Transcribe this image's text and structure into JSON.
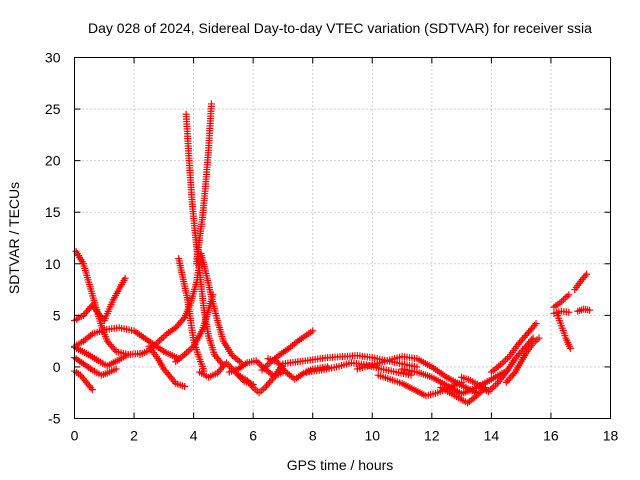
{
  "chart_data": {
    "type": "scatter",
    "title": "Day 028 of 2024, Sidereal Day-to-day VTEC variation (SDTVAR) for receiver ssia",
    "xlabel": "GPS time / hours",
    "ylabel": "SDTVAR / TECUs",
    "xlim": [
      0,
      18
    ],
    "ylim": [
      -5,
      30
    ],
    "x_ticks": [
      0,
      2,
      4,
      6,
      8,
      10,
      12,
      14,
      16,
      18
    ],
    "y_ticks": [
      -5,
      0,
      5,
      10,
      15,
      20,
      25,
      30
    ],
    "x_tick_labels": [
      "0",
      "2",
      "4",
      "6",
      "8",
      "10",
      "12",
      "14",
      "16",
      "18"
    ],
    "y_tick_labels": [
      "-5",
      "0",
      "5",
      "10",
      "15",
      "20",
      "25",
      "30"
    ],
    "grid": true,
    "marker": "+",
    "color": "#ff0000",
    "series": [
      {
        "name": "trace-1",
        "points": [
          [
            0,
            4.5
          ],
          [
            0.3,
            5
          ],
          [
            0.6,
            6
          ],
          [
            0.8,
            5.2
          ],
          [
            1.0,
            4.5
          ],
          [
            1.3,
            6.5
          ],
          [
            1.7,
            8.6
          ]
        ]
      },
      {
        "name": "trace-2",
        "points": [
          [
            0.05,
            11.2
          ],
          [
            0.3,
            10
          ],
          [
            0.5,
            8
          ],
          [
            0.7,
            6
          ],
          [
            0.9,
            4
          ],
          [
            1.1,
            2.5
          ],
          [
            1.4,
            1.5
          ],
          [
            1.8,
            1.2
          ]
        ]
      },
      {
        "name": "trace-3",
        "points": [
          [
            0,
            2
          ],
          [
            0.3,
            2.5
          ],
          [
            0.6,
            3.2
          ],
          [
            1.0,
            3.6
          ],
          [
            1.5,
            3.8
          ],
          [
            2.0,
            3.5
          ],
          [
            2.5,
            2.5
          ],
          [
            3.0,
            1.5
          ],
          [
            3.5,
            0.8
          ]
        ]
      },
      {
        "name": "trace-4",
        "points": [
          [
            0,
            1.9
          ],
          [
            0.4,
            1.3
          ],
          [
            0.8,
            0.6
          ],
          [
            1.1,
            0.1
          ],
          [
            1.5,
            0.7
          ],
          [
            1.8,
            1.2
          ],
          [
            2.2,
            1.3
          ]
        ]
      },
      {
        "name": "trace-5",
        "points": [
          [
            0,
            0.9
          ],
          [
            0.3,
            0.3
          ],
          [
            0.6,
            -0.3
          ],
          [
            0.9,
            -0.8
          ],
          [
            1.1,
            -0.6
          ],
          [
            1.4,
            -0.2
          ]
        ]
      },
      {
        "name": "trace-6",
        "points": [
          [
            0,
            -0.4
          ],
          [
            0.2,
            -0.8
          ],
          [
            0.4,
            -1.5
          ],
          [
            0.6,
            -2.2
          ]
        ]
      },
      {
        "name": "trace-7",
        "points": [
          [
            2.2,
            1.2
          ],
          [
            2.5,
            1.6
          ],
          [
            2.8,
            2.4
          ],
          [
            3.1,
            3.2
          ],
          [
            3.4,
            3.8
          ],
          [
            3.7,
            4.8
          ],
          [
            3.9,
            6.2
          ],
          [
            4.1,
            8.2
          ],
          [
            4.25,
            11
          ],
          [
            4.4,
            9.3
          ],
          [
            4.6,
            6.8
          ],
          [
            4.8,
            4.5
          ],
          [
            5.0,
            2.5
          ],
          [
            5.3,
            1.1
          ],
          [
            5.6,
            0.4
          ]
        ]
      },
      {
        "name": "trace-8",
        "points": [
          [
            2.5,
            2.0
          ],
          [
            2.8,
            0.8
          ],
          [
            3.0,
            -0.2
          ],
          [
            3.2,
            -0.9
          ],
          [
            3.4,
            -1.6
          ],
          [
            3.7,
            -1.9
          ]
        ]
      },
      {
        "name": "trace-9",
        "points": [
          [
            3.5,
            10.5
          ],
          [
            3.65,
            8.5
          ],
          [
            3.8,
            6.5
          ],
          [
            3.9,
            4.5
          ],
          [
            4.0,
            2.6
          ],
          [
            4.15,
            1.2
          ],
          [
            4.35,
            -0.4
          ]
        ]
      },
      {
        "name": "trace-10",
        "points": [
          [
            3.75,
            24.5
          ],
          [
            3.85,
            20
          ],
          [
            3.95,
            16
          ],
          [
            4.05,
            13
          ],
          [
            4.15,
            10.5
          ],
          [
            4.25,
            8
          ],
          [
            4.35,
            5.5
          ],
          [
            4.5,
            3
          ],
          [
            4.7,
            1.2
          ],
          [
            4.95,
            0.3
          ]
        ]
      },
      {
        "name": "trace-11",
        "points": [
          [
            4.6,
            25.5
          ],
          [
            4.5,
            21
          ],
          [
            4.4,
            17.5
          ],
          [
            4.3,
            14.5
          ],
          [
            4.2,
            12.5
          ],
          [
            4.1,
            10
          ]
        ]
      },
      {
        "name": "trace-12",
        "points": [
          [
            3.4,
            0.5
          ],
          [
            3.7,
            1.2
          ],
          [
            4.0,
            2.0
          ],
          [
            4.3,
            3.6
          ],
          [
            4.5,
            5.5
          ],
          [
            4.65,
            7.0
          ]
        ]
      },
      {
        "name": "trace-13",
        "points": [
          [
            4.2,
            -0.5
          ],
          [
            4.5,
            -1.0
          ],
          [
            4.8,
            -0.6
          ],
          [
            5.1,
            0.4
          ],
          [
            5.4,
            -0.5
          ],
          [
            5.7,
            -1.4
          ],
          [
            6.0,
            -1.7
          ]
        ]
      },
      {
        "name": "trace-14",
        "points": [
          [
            5.2,
            -0.5
          ],
          [
            5.5,
            -0.2
          ],
          [
            5.8,
            0.4
          ],
          [
            6.1,
            0.6
          ],
          [
            6.4,
            -0.2
          ],
          [
            6.7,
            -0.9
          ],
          [
            7.0,
            -0.5
          ]
        ]
      },
      {
        "name": "trace-15",
        "points": [
          [
            5.5,
            -0.8
          ],
          [
            5.8,
            -1.3
          ],
          [
            6.0,
            -2.0
          ],
          [
            6.2,
            -2.5
          ],
          [
            6.4,
            -2.0
          ],
          [
            6.7,
            -1.0
          ],
          [
            7.0,
            0.3
          ],
          [
            7.5,
            0.5
          ]
        ]
      },
      {
        "name": "trace-16",
        "points": [
          [
            6.5,
            0.8
          ],
          [
            6.8,
            0.5
          ],
          [
            7.1,
            -0.5
          ],
          [
            7.4,
            -1.2
          ],
          [
            7.7,
            -0.6
          ],
          [
            8.0,
            -0.2
          ],
          [
            8.5,
            0.0
          ]
        ]
      },
      {
        "name": "trace-17",
        "points": [
          [
            6.3,
            -0.3
          ],
          [
            6.6,
            0.5
          ],
          [
            6.9,
            1.2
          ],
          [
            7.2,
            1.8
          ],
          [
            7.5,
            2.5
          ],
          [
            7.8,
            3.1
          ],
          [
            8.0,
            3.5
          ]
        ]
      },
      {
        "name": "trace-18",
        "points": [
          [
            7.5,
            0.5
          ],
          [
            8.0,
            0.7
          ],
          [
            8.5,
            0.9
          ],
          [
            9.0,
            1.0
          ],
          [
            9.5,
            1.1
          ],
          [
            10.0,
            0.9
          ],
          [
            10.5,
            0.6
          ],
          [
            11.0,
            0.3
          ],
          [
            11.5,
            0.0
          ]
        ]
      },
      {
        "name": "trace-19",
        "points": [
          [
            7.8,
            -0.5
          ],
          [
            8.3,
            -0.3
          ],
          [
            8.8,
            0.0
          ],
          [
            9.3,
            0.4
          ],
          [
            9.8,
            0.2
          ],
          [
            10.3,
            -0.2
          ],
          [
            10.8,
            -0.5
          ],
          [
            11.3,
            -0.8
          ]
        ]
      },
      {
        "name": "trace-20",
        "points": [
          [
            9.5,
            -0.2
          ],
          [
            10.0,
            0.2
          ],
          [
            10.5,
            0.6
          ],
          [
            11.0,
            1.0
          ],
          [
            11.5,
            0.8
          ],
          [
            12.0,
            0.0
          ],
          [
            12.5,
            -1.0
          ],
          [
            13.0,
            -1.8
          ],
          [
            13.5,
            -2.5
          ]
        ]
      },
      {
        "name": "trace-21",
        "points": [
          [
            10.2,
            -0.8
          ],
          [
            10.6,
            -1.2
          ],
          [
            11.0,
            -1.6
          ],
          [
            11.4,
            -2.2
          ],
          [
            11.8,
            -2.8
          ],
          [
            12.2,
            -2.5
          ],
          [
            12.6,
            -2.0
          ],
          [
            13.0,
            -1.5
          ]
        ]
      },
      {
        "name": "trace-22",
        "points": [
          [
            11.0,
            -0.2
          ],
          [
            11.5,
            -0.5
          ],
          [
            12.0,
            -1.0
          ],
          [
            12.5,
            -1.8
          ],
          [
            13.0,
            -2.6
          ],
          [
            13.5,
            -2.0
          ],
          [
            14.0,
            -1.2
          ],
          [
            14.5,
            -0.4
          ]
        ]
      },
      {
        "name": "trace-23",
        "points": [
          [
            12.3,
            -2.0
          ],
          [
            12.6,
            -2.5
          ],
          [
            12.9,
            -3.0
          ],
          [
            13.2,
            -3.5
          ],
          [
            13.5,
            -2.8
          ],
          [
            13.8,
            -2.0
          ]
        ]
      },
      {
        "name": "trace-24",
        "points": [
          [
            13.0,
            -1.0
          ],
          [
            13.3,
            -1.3
          ],
          [
            13.6,
            -1.8
          ],
          [
            13.9,
            -2.4
          ],
          [
            14.2,
            -1.6
          ],
          [
            14.5,
            -0.5
          ],
          [
            14.8,
            0.8
          ],
          [
            15.1,
            1.8
          ],
          [
            15.4,
            2.8
          ]
        ]
      },
      {
        "name": "trace-25",
        "points": [
          [
            14.0,
            -0.5
          ],
          [
            14.3,
            0.2
          ],
          [
            14.6,
            1.0
          ],
          [
            14.9,
            2.2
          ],
          [
            15.2,
            3.2
          ],
          [
            15.5,
            4.2
          ]
        ]
      },
      {
        "name": "trace-26",
        "points": [
          [
            14.5,
            -1.5
          ],
          [
            14.8,
            -0.5
          ],
          [
            15.0,
            0.5
          ],
          [
            15.2,
            1.5
          ],
          [
            15.4,
            2.3
          ],
          [
            15.6,
            2.8
          ]
        ]
      },
      {
        "name": "trace-27",
        "points": [
          [
            16.1,
            5.8
          ],
          [
            16.3,
            6.2
          ],
          [
            16.6,
            7.0
          ]
        ]
      },
      {
        "name": "trace-28",
        "points": [
          [
            16.2,
            5.2
          ],
          [
            16.35,
            4.0
          ],
          [
            16.5,
            2.8
          ],
          [
            16.65,
            1.8
          ]
        ]
      },
      {
        "name": "trace-29",
        "points": [
          [
            16.1,
            5.2
          ],
          [
            16.35,
            5.4
          ],
          [
            16.6,
            5.3
          ]
        ]
      },
      {
        "name": "trace-30",
        "points": [
          [
            16.8,
            7.5
          ],
          [
            17.0,
            8.3
          ],
          [
            17.2,
            9.0
          ]
        ]
      },
      {
        "name": "trace-31",
        "points": [
          [
            16.9,
            5.4
          ],
          [
            17.1,
            5.6
          ],
          [
            17.3,
            5.5
          ]
        ]
      }
    ]
  }
}
